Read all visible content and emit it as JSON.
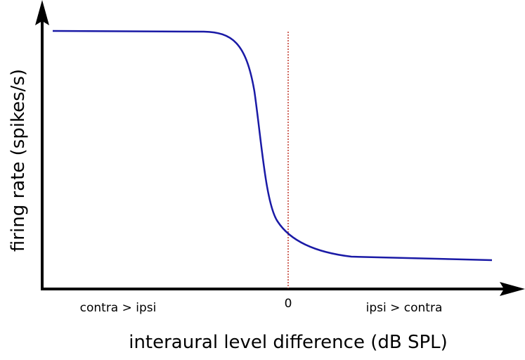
{
  "axes": {
    "y_label": "firing rate (spikes/s)",
    "x_label": "interaural level difference (dB SPL)",
    "x_tick": "0"
  },
  "annotations": {
    "left": "contra > ipsi",
    "right": "ipsi > contra"
  }
}
